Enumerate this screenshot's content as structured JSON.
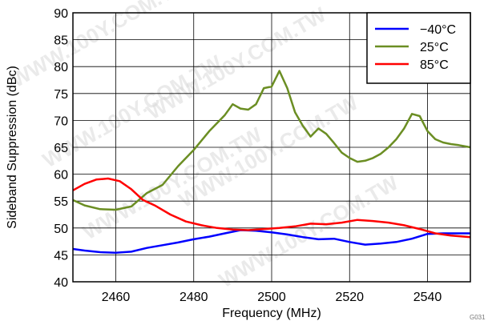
{
  "watermark": "WWW.100Y.COM.TW",
  "figure_id": "G031",
  "chart_data": {
    "type": "line",
    "title": "",
    "xlabel": "Frequency (MHz)",
    "ylabel": "Sideband Suppression (dBc)",
    "xlim": [
      2449,
      2551
    ],
    "ylim": [
      40,
      90
    ],
    "xticks": [
      2460,
      2480,
      2500,
      2520,
      2540
    ],
    "yticks": [
      40,
      45,
      50,
      55,
      60,
      65,
      70,
      75,
      80,
      85,
      90
    ],
    "grid": true,
    "legend_position": "top-right",
    "series": [
      {
        "name": "−40°C",
        "color": "#0000ff",
        "x": [
          2449,
          2452,
          2456,
          2460,
          2464,
          2468,
          2472,
          2476,
          2480,
          2484,
          2488,
          2492,
          2496,
          2500,
          2504,
          2508,
          2512,
          2516,
          2520,
          2524,
          2528,
          2532,
          2536,
          2540,
          2544,
          2548,
          2551
        ],
        "y": [
          46.1,
          45.8,
          45.5,
          45.4,
          45.6,
          46.3,
          46.8,
          47.3,
          47.9,
          48.4,
          49.0,
          49.6,
          49.5,
          49.2,
          48.8,
          48.3,
          47.9,
          48.0,
          47.4,
          46.9,
          47.1,
          47.4,
          48.0,
          48.9,
          49.0,
          49.0,
          49.0
        ]
      },
      {
        "name": "25°C",
        "color": "#6b8e23",
        "x": [
          2449,
          2452,
          2456,
          2460,
          2464,
          2468,
          2472,
          2476,
          2480,
          2484,
          2486,
          2488,
          2490,
          2492,
          2494,
          2496,
          2498,
          2500,
          2502,
          2504,
          2506,
          2508,
          2510,
          2512,
          2514,
          2516,
          2518,
          2520,
          2522,
          2524,
          2526,
          2528,
          2530,
          2532,
          2534,
          2536,
          2538,
          2540,
          2542,
          2544,
          2546,
          2548,
          2551
        ],
        "y": [
          55.2,
          54.2,
          53.5,
          53.4,
          54.0,
          56.5,
          58.0,
          61.5,
          64.5,
          68.0,
          69.5,
          71.0,
          73.0,
          72.2,
          72.0,
          73.0,
          76.0,
          76.3,
          79.2,
          76.0,
          71.5,
          69.0,
          67.0,
          68.5,
          67.5,
          65.8,
          64.0,
          63.0,
          62.3,
          62.5,
          63.0,
          63.8,
          65.0,
          66.5,
          68.5,
          71.2,
          70.8,
          68.0,
          66.5,
          65.9,
          65.6,
          65.4,
          65.0
        ]
      },
      {
        "name": "85°C",
        "color": "#ff0000",
        "x": [
          2449,
          2452,
          2455,
          2458,
          2461,
          2464,
          2467,
          2470,
          2474,
          2478,
          2482,
          2486,
          2490,
          2494,
          2498,
          2502,
          2506,
          2510,
          2514,
          2518,
          2522,
          2526,
          2530,
          2534,
          2538,
          2542,
          2546,
          2551
        ],
        "y": [
          57.0,
          58.2,
          59.0,
          59.2,
          58.7,
          57.2,
          55.2,
          54.2,
          52.5,
          51.2,
          50.5,
          50.0,
          49.7,
          49.6,
          49.8,
          50.0,
          50.3,
          50.8,
          50.7,
          51.0,
          51.5,
          51.3,
          51.0,
          50.5,
          49.8,
          49.0,
          48.6,
          48.3
        ]
      }
    ]
  }
}
